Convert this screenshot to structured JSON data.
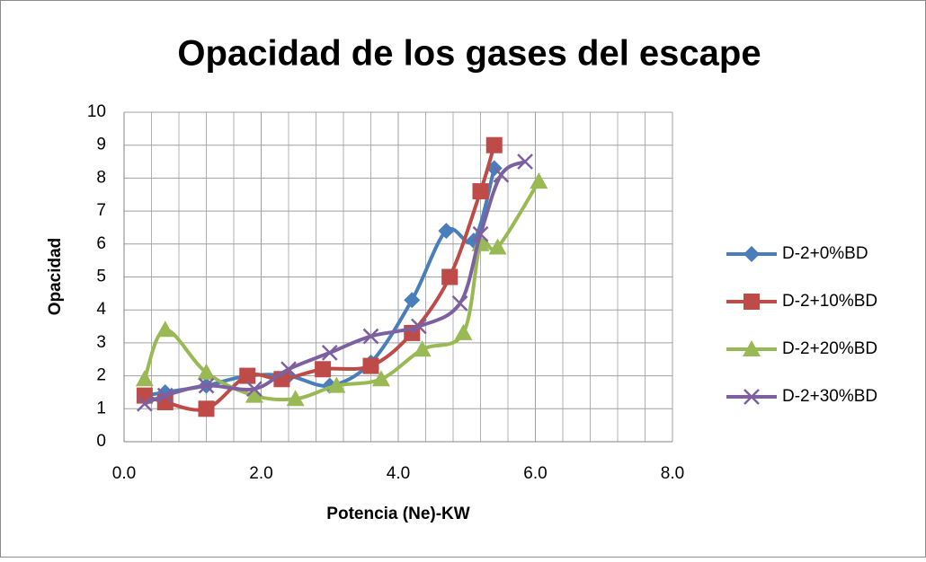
{
  "chart_data": {
    "type": "scatter",
    "title": "Opacidad de los gases del escape",
    "x_label": "Potencia (Ne)-KW",
    "y_label": "Opacidad",
    "xlim": [
      0,
      8
    ],
    "ylim": [
      0,
      10
    ],
    "xticks": [
      {
        "value": 0,
        "label": "0.0"
      },
      {
        "value": 2,
        "label": "2.0"
      },
      {
        "value": 4,
        "label": "4.0"
      },
      {
        "value": 6,
        "label": "6.0"
      },
      {
        "value": 8,
        "label": "8.0"
      }
    ],
    "yticks": [
      0,
      1,
      2,
      3,
      4,
      5,
      6,
      7,
      8,
      9,
      10
    ],
    "grid": true,
    "minor_grid": true,
    "smooth": true,
    "legend": "right",
    "series": [
      {
        "name": "D-2+0%BD",
        "color": "#4a7ebb",
        "marker": "diamond",
        "x": [
          0.3,
          0.6,
          1.2,
          1.8,
          2.4,
          3.0,
          3.6,
          4.2,
          4.7,
          5.1,
          5.4
        ],
        "values": [
          1.4,
          1.5,
          1.7,
          2.0,
          2.0,
          1.7,
          2.4,
          4.3,
          6.4,
          6.1,
          8.3
        ]
      },
      {
        "name": "D-2+10%BD",
        "color": "#be4b48",
        "marker": "square",
        "x": [
          0.3,
          0.6,
          1.2,
          1.8,
          2.3,
          2.9,
          3.6,
          4.2,
          4.75,
          5.2,
          5.4
        ],
        "values": [
          1.4,
          1.2,
          1.0,
          2.0,
          1.9,
          2.2,
          2.3,
          3.3,
          5.0,
          7.6,
          9.0
        ]
      },
      {
        "name": "D-2+20%BD",
        "color": "#98b954",
        "marker": "triangle",
        "x": [
          0.3,
          0.6,
          1.2,
          1.9,
          2.5,
          3.1,
          3.75,
          4.35,
          4.95,
          5.2,
          5.45,
          6.05
        ],
        "values": [
          1.9,
          3.4,
          2.1,
          1.4,
          1.3,
          1.7,
          1.9,
          2.8,
          3.3,
          6.0,
          5.9,
          7.9
        ]
      },
      {
        "name": "D-2+30%BD",
        "color": "#7d60a0",
        "marker": "x",
        "x": [
          0.3,
          0.6,
          1.2,
          1.9,
          2.4,
          3.0,
          3.6,
          4.3,
          4.9,
          5.2,
          5.5,
          5.85
        ],
        "values": [
          1.15,
          1.4,
          1.7,
          1.6,
          2.2,
          2.7,
          3.2,
          3.5,
          4.2,
          6.3,
          8.1,
          8.5
        ]
      }
    ]
  }
}
